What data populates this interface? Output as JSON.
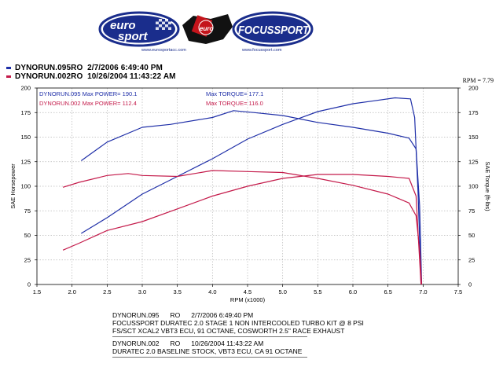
{
  "logos": {
    "eurosport": {
      "line1": "euro",
      "line2": "sport",
      "url": "www.eurosportacc.com"
    },
    "center_badge": {
      "text": "euro"
    },
    "focussport": {
      "text": "FOCUSSPORT",
      "url": "www.focussport.com"
    },
    "colors": {
      "navy": "#1a2d8c",
      "red": "#c4141b"
    }
  },
  "legend": [
    {
      "name": "DYNORUN.095RO",
      "date": "2/7/2006",
      "time": "6:49:40 PM",
      "color": "#1f2fa8"
    },
    {
      "name": "DYNORUN.002RO",
      "date": "10/26/2004",
      "time": "11:43:22 AM",
      "color": "#c41a4a"
    }
  ],
  "rpm_readout": "RPM = 7.79",
  "chart_data": {
    "type": "line",
    "xlabel": "RPM (x1000)",
    "ylabel_left": "SAE Horsepower",
    "ylabel_right": "SAE Torque (ft-lbs)",
    "xlim": [
      1.5,
      7.5
    ],
    "ylim": [
      0,
      200
    ],
    "xticks": [
      "1.5",
      "2.0",
      "2.5",
      "3.0",
      "3.5",
      "4.0",
      "4.5",
      "5.0",
      "5.5",
      "6.0",
      "6.5",
      "7.0",
      "7.5"
    ],
    "yticks": [
      "0",
      "25",
      "50",
      "75",
      "100",
      "125",
      "150",
      "175",
      "200"
    ],
    "grid": true,
    "annotations": [
      {
        "text": "DYNORUN.095  Max POWER= 190.1",
        "color": "#1f2fa8"
      },
      {
        "text": "DYNORUN.002  Max POWER= 112.4",
        "color": "#c41a4a"
      },
      {
        "text": "Max TORQUE= 177.1",
        "color": "#1f2fa8"
      },
      {
        "text": "Max TORQUE= 116.0",
        "color": "#c41a4a"
      }
    ],
    "series": [
      {
        "run": "DYNORUN.095",
        "measure": "power",
        "color": "#1f2fa8",
        "x": [
          2.13,
          2.5,
          3.0,
          3.5,
          4.0,
          4.5,
          5.0,
          5.5,
          6.0,
          6.3,
          6.6,
          6.82,
          6.88,
          6.93,
          6.97
        ],
        "y": [
          52,
          68,
          92,
          110,
          128,
          148,
          163,
          176,
          184,
          187,
          190,
          189,
          170,
          90,
          0
        ]
      },
      {
        "run": "DYNORUN.095",
        "measure": "torque",
        "color": "#1f2fa8",
        "x": [
          2.13,
          2.5,
          3.0,
          3.4,
          4.0,
          4.3,
          4.6,
          5.0,
          5.5,
          6.0,
          6.5,
          6.8,
          6.9,
          6.95,
          6.98
        ],
        "y": [
          126,
          145,
          160,
          163,
          170,
          177,
          175,
          172,
          165,
          160,
          154,
          149,
          138,
          80,
          0
        ]
      },
      {
        "run": "DYNORUN.002",
        "measure": "power",
        "color": "#c41a4a",
        "x": [
          1.87,
          2.1,
          2.5,
          3.0,
          3.5,
          4.0,
          4.5,
          5.0,
          5.5,
          6.0,
          6.5,
          6.8,
          6.9,
          6.93,
          6.97
        ],
        "y": [
          35,
          42,
          55,
          64,
          77,
          90,
          100,
          108,
          112,
          112,
          110,
          108,
          90,
          50,
          0
        ]
      },
      {
        "run": "DYNORUN.002",
        "measure": "torque",
        "color": "#c41a4a",
        "x": [
          1.87,
          2.1,
          2.5,
          2.8,
          3.0,
          3.5,
          4.0,
          4.5,
          5.0,
          5.5,
          6.0,
          6.5,
          6.8,
          6.9,
          6.95,
          6.98
        ],
        "y": [
          99,
          104,
          111,
          113,
          111,
          110,
          116,
          115,
          114,
          108,
          101,
          92,
          83,
          70,
          35,
          0
        ]
      }
    ]
  },
  "notes": [
    {
      "run": "DYNORUN.095",
      "ro": "RO",
      "date": "2/7/2006 6:49:40 PM",
      "lines": [
        "FOCUSSPORT DURATEC 2.0 STAGE 1 NON INTERCOOLED TURBO KIT @ 8 PSI",
        "FS/SCT XCAL2 VBT3 ECU, 91 OCTANE, COSWORTH 2.5\" RACE EXHAUST"
      ]
    },
    {
      "run": "DYNORUN.002",
      "ro": "RO",
      "date": "10/26/2004 11:43:22 AM",
      "lines": [
        "DURATEC 2.0 BASELINE STOCK, VBT3 ECU, CA 91 OCTANE"
      ]
    }
  ]
}
